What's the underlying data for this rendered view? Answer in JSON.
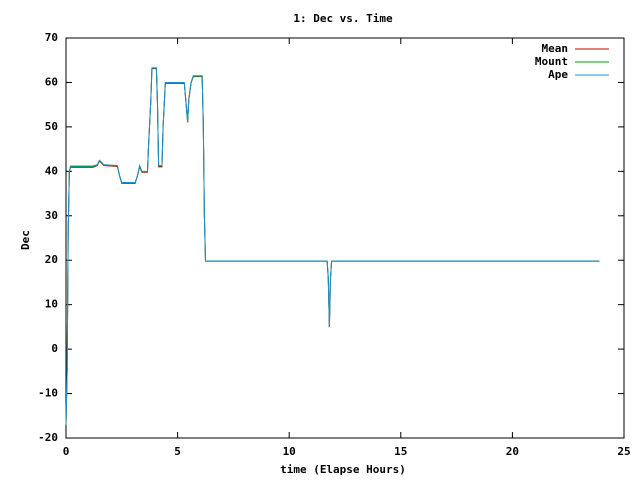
{
  "chart_data": {
    "type": "line",
    "title": "1: Dec vs. Time",
    "xlabel": "time (Elapse Hours)",
    "ylabel": "Dec",
    "x": [
      0,
      0.05,
      0.1,
      0.15,
      0.2,
      1.2,
      1.4,
      1.5,
      1.7,
      2.3,
      2.4,
      2.5,
      3.1,
      3.2,
      3.3,
      3.4,
      3.65,
      3.7,
      3.8,
      3.85,
      4.05,
      4.1,
      4.15,
      4.3,
      4.35,
      4.45,
      5.3,
      5.35,
      5.45,
      5.5,
      5.6,
      5.7,
      6.1,
      6.15,
      6.2,
      6.25,
      11.7,
      11.75,
      11.8,
      11.85,
      11.9,
      23.9
    ],
    "series": [
      {
        "name": "Mean",
        "color": "#cc0000",
        "values": [
          -17,
          -5,
          27,
          40,
          40.9,
          40.9,
          41.3,
          42.3,
          41.3,
          41.1,
          39,
          37.3,
          37.3,
          39,
          41,
          39.8,
          39.8,
          46,
          56,
          63.1,
          63.1,
          55,
          41,
          41,
          50,
          59.8,
          59.8,
          57,
          51,
          56,
          59.8,
          61.3,
          61.3,
          51,
          30,
          19.8,
          19.8,
          16,
          5,
          16,
          19.8,
          19.8
        ]
      },
      {
        "name": "Mount",
        "color": "#009900",
        "values": [
          -17,
          -5,
          27,
          40,
          41,
          41,
          41.4,
          42.4,
          41.4,
          41.2,
          39,
          37.4,
          37.4,
          39,
          41.2,
          39.9,
          39.9,
          46,
          56,
          63.2,
          63.2,
          55,
          41.2,
          41.2,
          50,
          59.9,
          59.9,
          57,
          51,
          56,
          59.9,
          61.4,
          61.4,
          51,
          30,
          19.8,
          19.8,
          16,
          5,
          16,
          19.8,
          19.8
        ]
      },
      {
        "name": "Ape",
        "color": "#1f8fcf",
        "values": [
          -17,
          -5,
          27,
          40,
          41.2,
          41.2,
          41.5,
          42.5,
          41.5,
          41.3,
          39,
          37.5,
          37.5,
          39,
          41.3,
          40,
          40,
          46,
          56,
          63.3,
          63.3,
          55,
          41.3,
          41.3,
          50,
          60,
          60,
          57,
          51,
          56,
          60,
          61.5,
          61.5,
          51,
          30,
          19.8,
          19.8,
          16,
          5,
          16,
          19.8,
          19.8
        ]
      }
    ],
    "xlim": [
      0,
      25
    ],
    "xticks": [
      0,
      5,
      10,
      15,
      20,
      25
    ],
    "ylim": [
      -20,
      70
    ],
    "yticks": [
      -20,
      -10,
      0,
      10,
      20,
      30,
      40,
      50,
      60,
      70
    ],
    "legend": "upper-right"
  }
}
